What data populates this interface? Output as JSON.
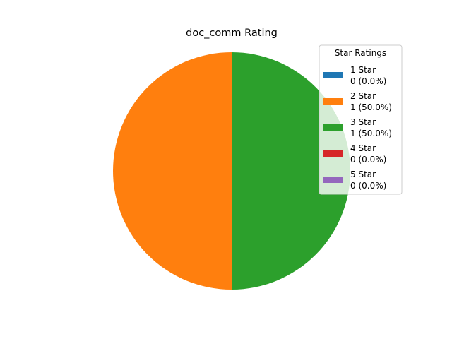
{
  "chart_data": {
    "type": "pie",
    "title": "doc_comm Rating",
    "legend_title": "Star Ratings",
    "legend_placement": "top-right",
    "slices": [
      {
        "label": "1 Star",
        "value": 0,
        "percent": 0.0,
        "value_text": "0 (0.0%)",
        "color": "#1f77b4"
      },
      {
        "label": "2 Star",
        "value": 1,
        "percent": 50.0,
        "value_text": "1 (50.0%)",
        "color": "#ff7f0e"
      },
      {
        "label": "3 Star",
        "value": 1,
        "percent": 50.0,
        "value_text": "1 (50.0%)",
        "color": "#2ca02c"
      },
      {
        "label": "4 Star",
        "value": 0,
        "percent": 0.0,
        "value_text": "0 (0.0%)",
        "color": "#d62728"
      },
      {
        "label": "5 Star",
        "value": 0,
        "percent": 0.0,
        "value_text": "0 (0.0%)",
        "color": "#9467bd"
      }
    ]
  }
}
